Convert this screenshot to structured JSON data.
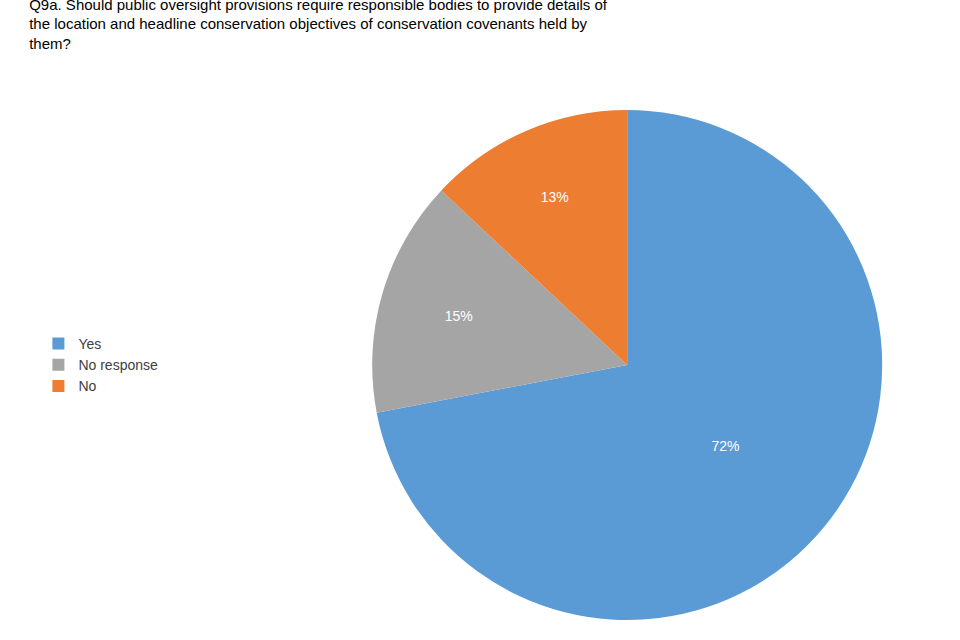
{
  "chart_data": {
    "type": "pie",
    "title": "Q9a. Should public oversight provisions require responsible bodies to provide details of\nthe location and headline conservation objectives of conservation covenants held by\nthem?",
    "categories": [
      "Yes",
      "No response",
      "No"
    ],
    "values": [
      72,
      15,
      13
    ],
    "value_labels": [
      "72%",
      "15%",
      "13%"
    ],
    "colors": [
      "#5B9BD5",
      "#A5A5A5",
      "#ED7D31"
    ],
    "data_labels": true,
    "legend": "left"
  }
}
